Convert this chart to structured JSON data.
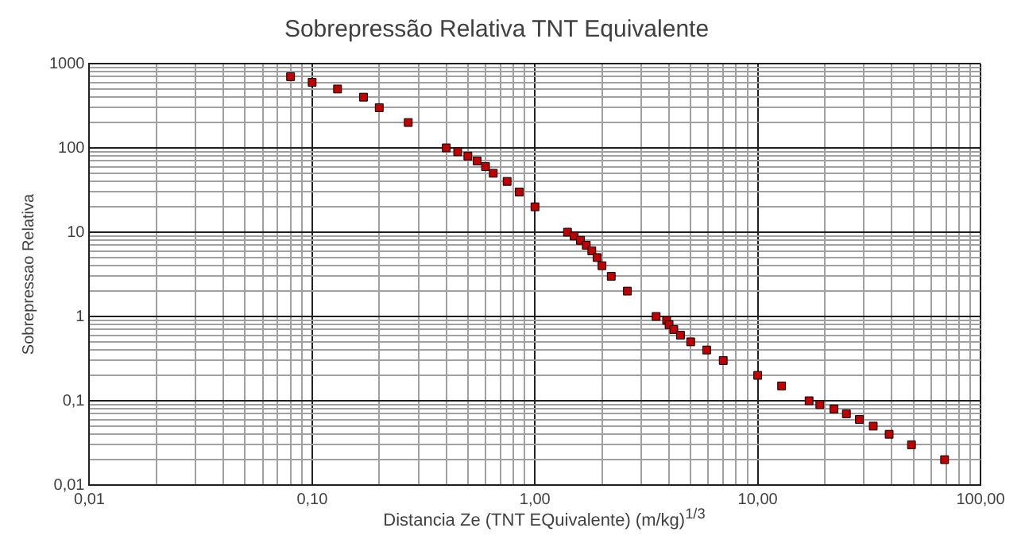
{
  "chart_data": {
    "type": "scatter",
    "title": "Sobrepressão Relativa TNT Equivalente",
    "xlabel": "Distancia Ze (TNT EQuivalente) (m/kg)$^{1/3}$",
    "ylabel": "Sobrepressao Relativa",
    "log": "xy",
    "grid": true,
    "marker": "square",
    "xlim": [
      0.01,
      100
    ],
    "ylim": [
      0.01,
      1000
    ],
    "xticks": [
      {
        "value": 0.01,
        "label": "0,01"
      },
      {
        "value": 0.02,
        "label": null
      },
      {
        "value": 0.03,
        "label": null
      },
      {
        "value": 0.04,
        "label": null
      },
      {
        "value": 0.05,
        "label": null
      },
      {
        "value": 0.06,
        "label": null
      },
      {
        "value": 0.07,
        "label": null
      },
      {
        "value": 0.08,
        "label": null
      },
      {
        "value": 0.09,
        "label": null
      },
      {
        "value": 0.1,
        "label": "0,10"
      },
      {
        "value": 0.2,
        "label": null
      },
      {
        "value": 0.3,
        "label": null
      },
      {
        "value": 0.4,
        "label": null
      },
      {
        "value": 0.5,
        "label": null
      },
      {
        "value": 0.6,
        "label": null
      },
      {
        "value": 0.7,
        "label": null
      },
      {
        "value": 0.8,
        "label": null
      },
      {
        "value": 0.9,
        "label": null
      },
      {
        "value": 1,
        "label": "1,00"
      },
      {
        "value": 2,
        "label": null
      },
      {
        "value": 3,
        "label": null
      },
      {
        "value": 4,
        "label": null
      },
      {
        "value": 5,
        "label": null
      },
      {
        "value": 6,
        "label": null
      },
      {
        "value": 7,
        "label": null
      },
      {
        "value": 8,
        "label": null
      },
      {
        "value": 9,
        "label": null
      },
      {
        "value": 10,
        "label": "10,00"
      },
      {
        "value": 20,
        "label": null
      },
      {
        "value": 30,
        "label": null
      },
      {
        "value": 40,
        "label": null
      },
      {
        "value": 50,
        "label": null
      },
      {
        "value": 60,
        "label": null
      },
      {
        "value": 70,
        "label": null
      },
      {
        "value": 80,
        "label": null
      },
      {
        "value": 90,
        "label": null
      },
      {
        "value": 100,
        "label": "100,00"
      }
    ],
    "yticks": [
      {
        "value": 0.01,
        "label": "0,01"
      },
      {
        "value": 0.02,
        "label": null
      },
      {
        "value": 0.03,
        "label": null
      },
      {
        "value": 0.04,
        "label": null
      },
      {
        "value": 0.05,
        "label": null
      },
      {
        "value": 0.06,
        "label": null
      },
      {
        "value": 0.07,
        "label": null
      },
      {
        "value": 0.08,
        "label": null
      },
      {
        "value": 0.09,
        "label": null
      },
      {
        "value": 0.1,
        "label": "0,1"
      },
      {
        "value": 0.2,
        "label": null
      },
      {
        "value": 0.3,
        "label": null
      },
      {
        "value": 0.4,
        "label": null
      },
      {
        "value": 0.5,
        "label": null
      },
      {
        "value": 0.6,
        "label": null
      },
      {
        "value": 0.7,
        "label": null
      },
      {
        "value": 0.8,
        "label": null
      },
      {
        "value": 0.9,
        "label": null
      },
      1,
      {
        "value": 2,
        "label": null
      },
      {
        "value": 3,
        "label": null
      },
      {
        "value": 4,
        "label": null
      },
      {
        "value": 5,
        "label": null
      },
      {
        "value": 6,
        "label": null
      },
      {
        "value": 7,
        "label": null
      },
      {
        "value": 8,
        "label": null
      },
      {
        "value": 9,
        "label": null
      },
      10,
      {
        "value": 20,
        "label": null
      },
      {
        "value": 30,
        "label": null
      },
      {
        "value": 40,
        "label": null
      },
      {
        "value": 50,
        "label": null
      },
      {
        "value": 60,
        "label": null
      },
      {
        "value": 70,
        "label": null
      },
      {
        "value": 80,
        "label": null
      },
      {
        "value": 90,
        "label": null
      },
      100,
      {
        "value": 200,
        "label": null
      },
      {
        "value": 300,
        "label": null
      },
      {
        "value": 400,
        "label": null
      },
      {
        "value": 500,
        "label": null
      },
      {
        "value": 600,
        "label": null
      },
      {
        "value": 700,
        "label": null
      },
      {
        "value": 800,
        "label": null
      },
      {
        "value": 900,
        "label": null
      },
      1000
    ],
    "series": [
      {
        "color": "#c00000",
        "x": [
          0.08,
          0.1,
          0.13,
          0.17,
          0.2,
          0.27,
          0.4,
          0.45,
          0.5,
          0.55,
          0.6,
          0.65,
          0.75,
          0.85,
          1.0,
          1.4,
          1.5,
          1.6,
          1.7,
          1.8,
          1.9,
          2.0,
          2.2,
          2.6,
          3.5,
          3.9,
          4.0,
          4.2,
          4.5,
          5.0,
          5.9,
          7.0,
          10,
          12.8,
          17,
          19,
          22,
          25,
          28.6,
          33,
          38.9,
          49,
          69
        ],
        "values": [
          700,
          600,
          500,
          400,
          300,
          200,
          100,
          90,
          80,
          70,
          60,
          50,
          40,
          30,
          20,
          10,
          9,
          8,
          7,
          6,
          5,
          4,
          3,
          2,
          1,
          0.9,
          0.8,
          0.7,
          0.6,
          0.5,
          0.4,
          0.3,
          0.2,
          0.15,
          0.1,
          0.09,
          0.08,
          0.07,
          0.06,
          0.05,
          0.04,
          0.03,
          0.02
        ]
      }
    ]
  }
}
